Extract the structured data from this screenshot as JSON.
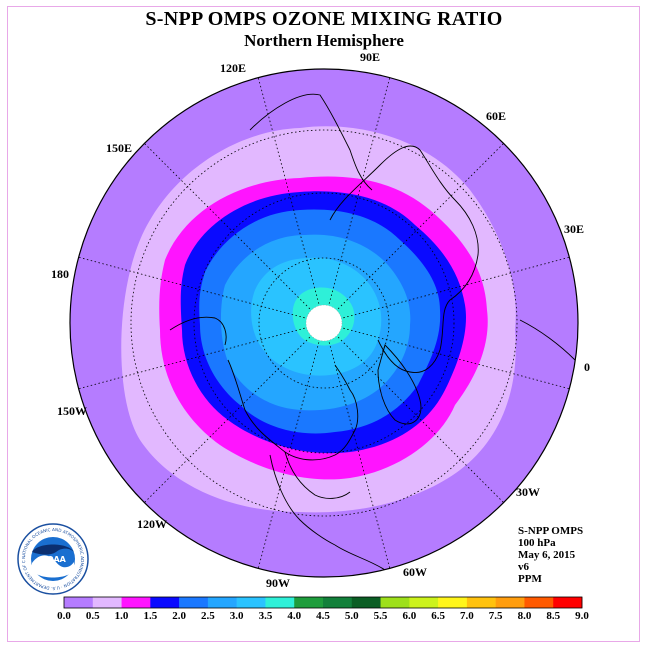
{
  "title": "S-NPP OMPS OZONE MIXING RATIO",
  "subtitle": "Northern Hemisphere",
  "map": {
    "projection": "north-polar-stereographic",
    "longitude_labels": [
      "90E",
      "60E",
      "30E",
      "0",
      "30W",
      "60W",
      "90W",
      "120W",
      "150W",
      "180",
      "150E",
      "120E"
    ],
    "missing_data_region": "north-pole",
    "contour_colors_outer_to_inner": [
      "#b57cff",
      "#e2b8ff",
      "#ff14ff",
      "#0a0aff",
      "#1a78ff",
      "#24a6ff",
      "#2ac3ff",
      "#2ef0d8"
    ]
  },
  "info": {
    "instrument": "S-NPP OMPS",
    "level": "100 hPa",
    "date": "May 6, 2015",
    "version": "v6",
    "units": "PPM"
  },
  "colorbar": {
    "ticks": [
      "0.0",
      "0.5",
      "1.0",
      "1.5",
      "2.0",
      "2.5",
      "3.0",
      "3.5",
      "4.0",
      "4.5",
      "5.0",
      "5.5",
      "6.0",
      "6.5",
      "7.0",
      "7.5",
      "8.0",
      "8.5",
      "9.0"
    ],
    "colors": [
      "#b57cff",
      "#e2b8ff",
      "#ff14ff",
      "#0a0aff",
      "#1a78ff",
      "#24a6ff",
      "#2ac3ff",
      "#2ef0d8",
      "#1e9d3c",
      "#12803a",
      "#0b5e24",
      "#9ee01a",
      "#ccf21c",
      "#fff51a",
      "#ffc20e",
      "#ff9d0e",
      "#ff5a00",
      "#ff0000",
      "#8a5a3a"
    ]
  },
  "logo": {
    "text": "NOAA",
    "ring_text": "NATIONAL OCEANIC AND ATMOSPHERIC ADMINISTRATION · U.S. DEPARTMENT OF COMMERCE"
  }
}
